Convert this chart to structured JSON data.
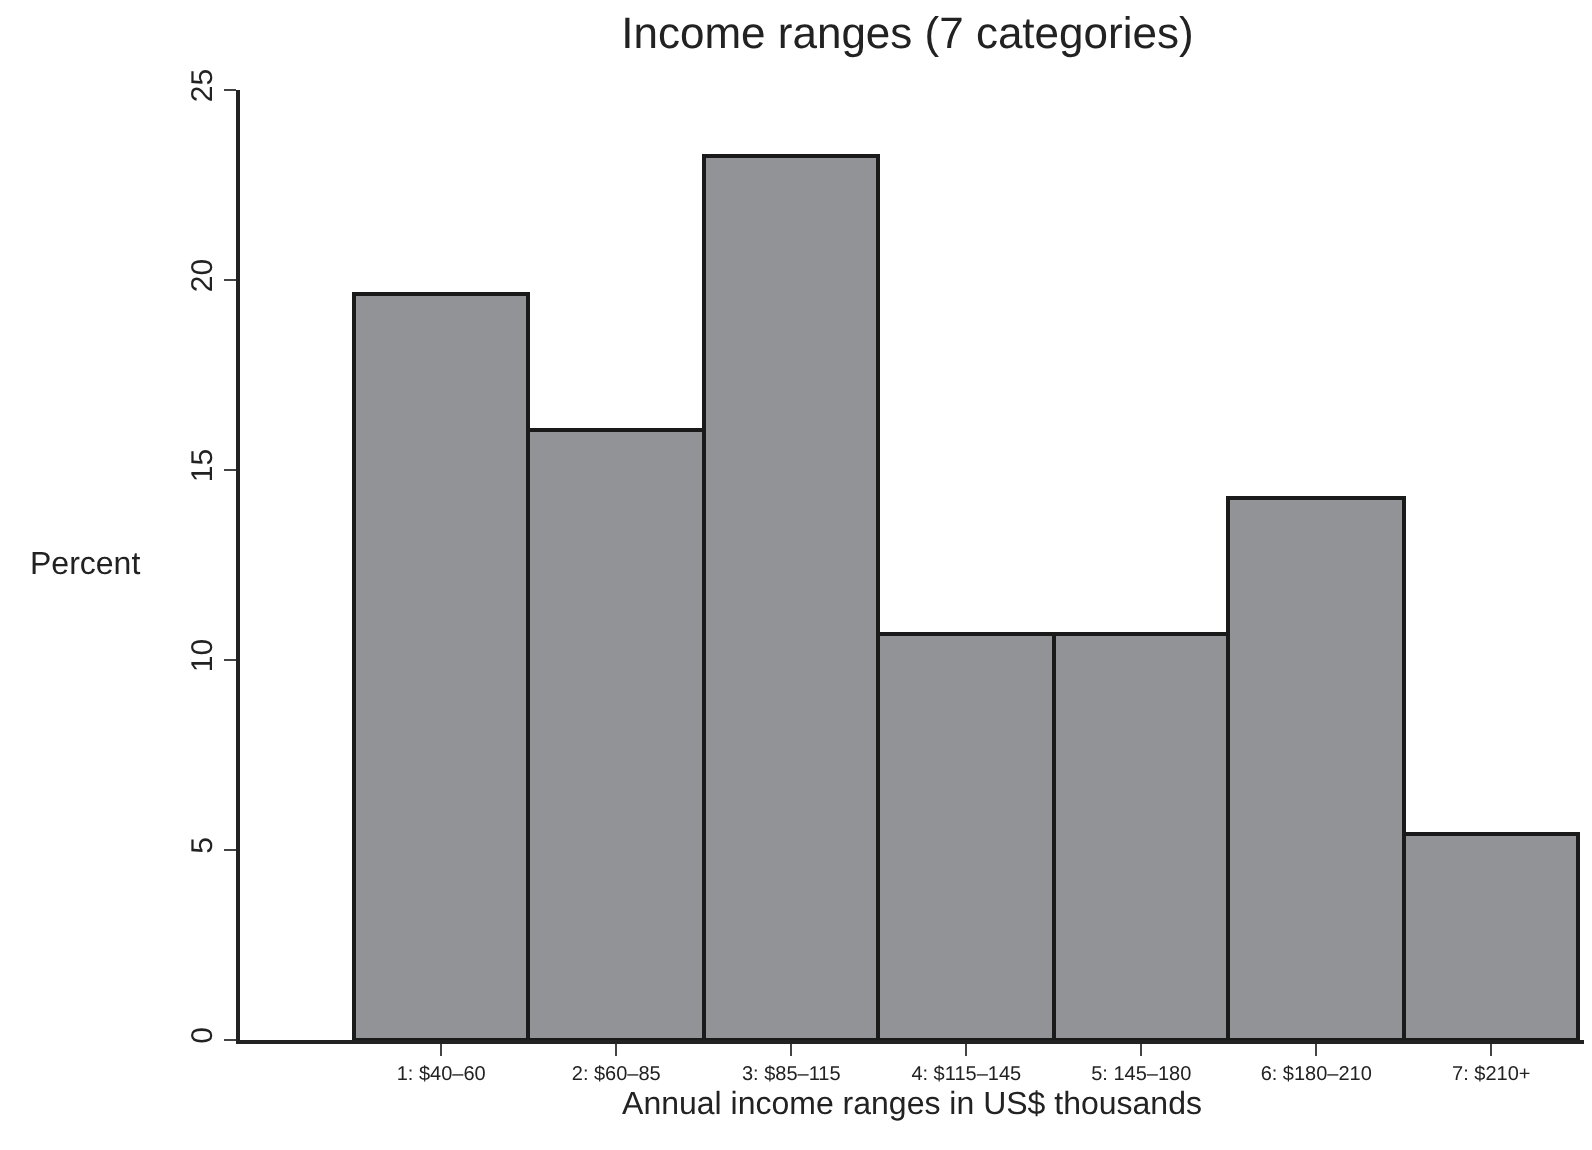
{
  "chart_data": {
    "type": "bar",
    "title": "Income ranges (7 categories)",
    "xlabel": "Annual income ranges in US$ thousands",
    "ylabel": "Percent",
    "categories": [
      "1: $40–60",
      "2: $60–85",
      "3: $85–115",
      "4: $115–145",
      "5: 145–180",
      "6: $180–210",
      "7: $210+"
    ],
    "values": [
      19.65,
      16.05,
      23.25,
      10.7,
      10.7,
      14.25,
      5.4
    ],
    "color": "#929396",
    "ylim": [
      0,
      25
    ],
    "yticks": [
      0,
      5,
      10,
      15,
      20,
      25
    ]
  }
}
